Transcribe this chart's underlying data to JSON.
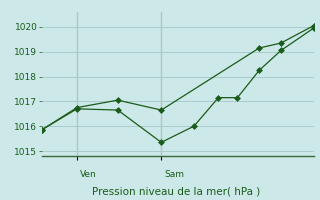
{
  "background_color": "#cce8e8",
  "grid_color": "#aacccc",
  "line_color": "#1a5c1a",
  "marker_color": "#1a5c1a",
  "xlabel": "Pression niveau de la mer( hPa )",
  "ylim": [
    1014.8,
    1020.6
  ],
  "yticks": [
    1015,
    1016,
    1017,
    1018,
    1019,
    1020
  ],
  "vline_x": [
    0.13,
    0.44
  ],
  "vline_labels": [
    "Ven",
    "Sam"
  ],
  "line1_x": [
    0.0,
    0.13,
    0.28,
    0.44,
    0.56,
    0.65,
    0.72,
    0.8,
    0.88,
    1.0
  ],
  "line1_y": [
    1015.85,
    1016.7,
    1016.65,
    1015.35,
    1016.0,
    1017.15,
    1017.15,
    1018.25,
    1019.05,
    1019.95
  ],
  "line2_x": [
    0.0,
    0.13,
    0.28,
    0.44,
    0.8,
    0.88,
    1.0
  ],
  "line2_y": [
    1015.85,
    1016.75,
    1017.05,
    1016.65,
    1019.15,
    1019.35,
    1020.05
  ],
  "figsize": [
    3.2,
    2.0
  ],
  "dpi": 100
}
